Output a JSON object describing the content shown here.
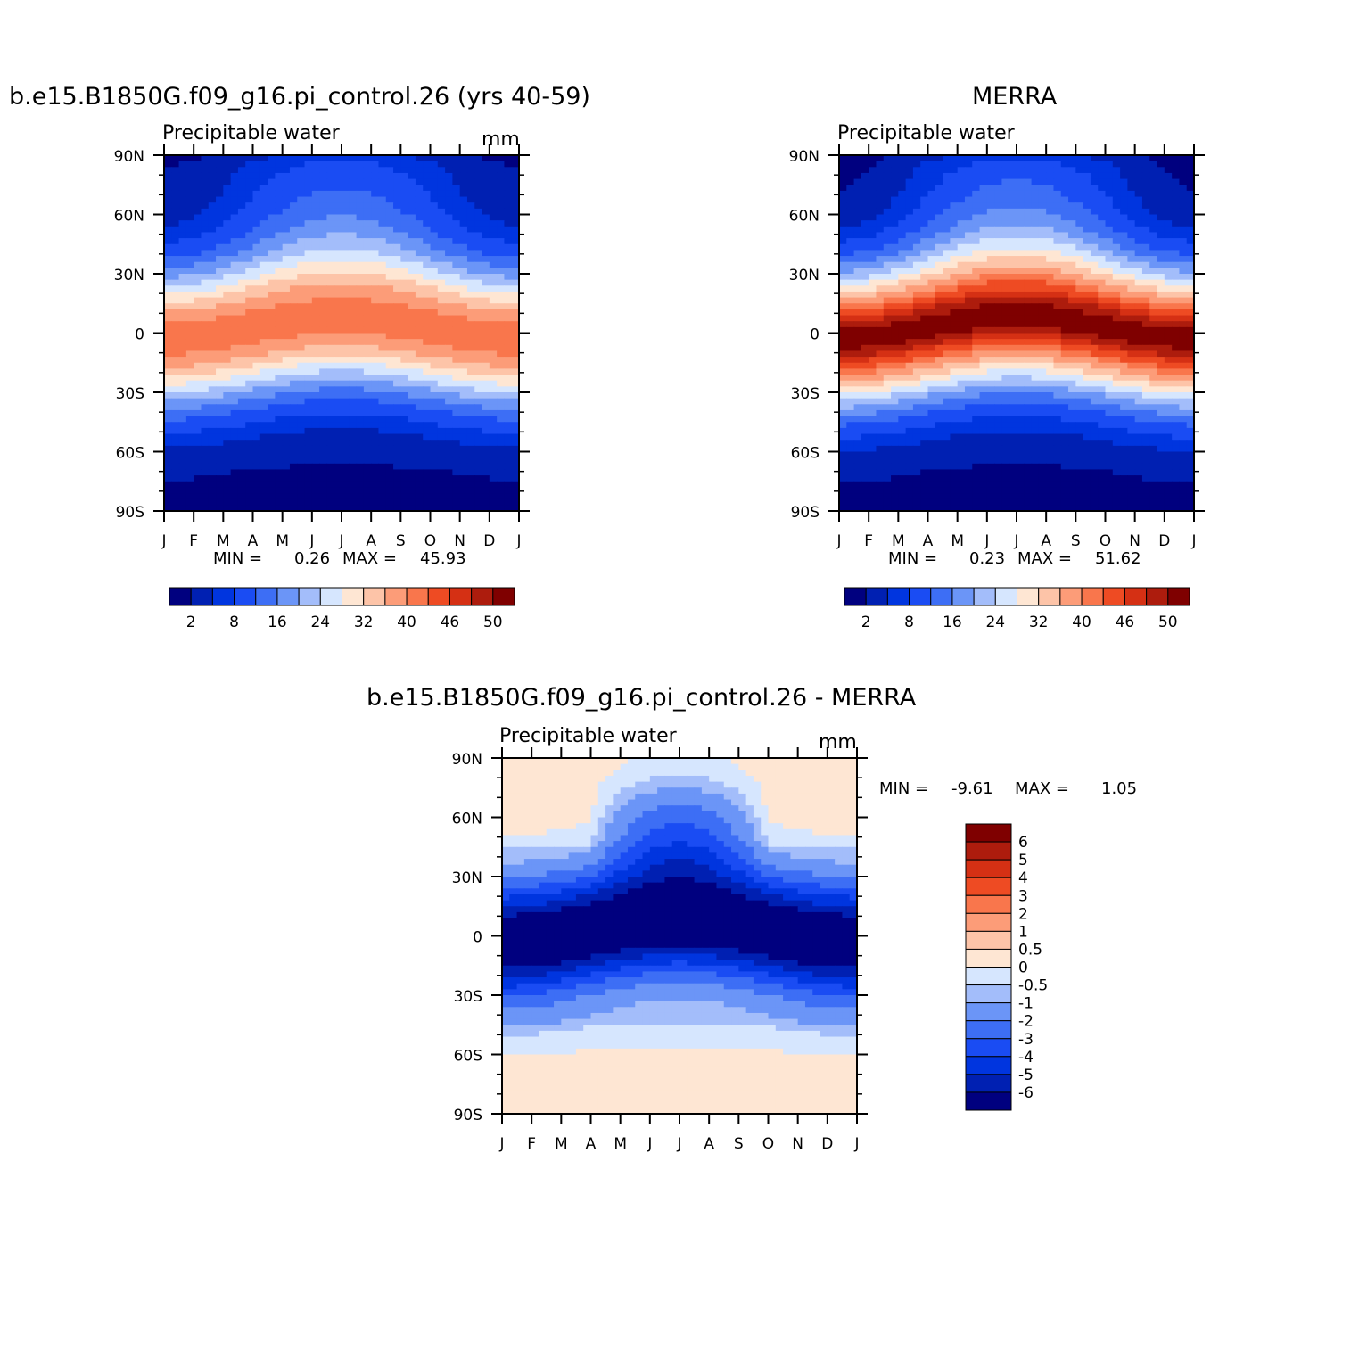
{
  "palette": {
    "abs": [
      "#00007f",
      "#0020b2",
      "#0035df",
      "#1a4cf3",
      "#3d6ef5",
      "#6b95f7",
      "#a3bdfa",
      "#d6e6fe",
      "#fee6d3",
      "#fdc4a8",
      "#fc9c78",
      "#f9764c",
      "#ee4b23",
      "#d53014",
      "#ad1c0d",
      "#7f0000"
    ],
    "diff": [
      "#00007f",
      "#0020b2",
      "#0035df",
      "#1a4cf3",
      "#3d6ef5",
      "#6b95f7",
      "#a3bdfa",
      "#d6e6fe",
      "#fee6d3",
      "#fdc4a8",
      "#fc9c78",
      "#f9764c",
      "#ee4b23",
      "#d53014",
      "#ad1c0d",
      "#7f0000"
    ]
  },
  "panels": [
    {
      "id": "model",
      "title": "b.e15.B1850G.f09_g16.pi_control.26 (yrs 40-59)",
      "left_label": "Precipitable water",
      "units": "mm",
      "stats": {
        "min_label": "MIN =",
        "min": "0.26",
        "max_label": "MAX =",
        "max": "45.93"
      },
      "colorbar_labels": [
        "2",
        "8",
        "16",
        "24",
        "32",
        "40",
        "46",
        "50"
      ]
    },
    {
      "id": "merra",
      "title": "MERRA",
      "left_label": "Precipitable water",
      "units": "",
      "stats": {
        "min_label": "MIN =",
        "min": "0.23",
        "max_label": "MAX =",
        "max": "51.62"
      },
      "colorbar_labels": [
        "2",
        "8",
        "16",
        "24",
        "32",
        "40",
        "46",
        "50"
      ]
    },
    {
      "id": "diff",
      "title": "b.e15.B1850G.f09_g16.pi_control.26 - MERRA",
      "left_label": "Precipitable water",
      "units": "mm",
      "stats": {
        "min_label": "MIN =",
        "min": "-9.61",
        "max_label": "MAX =",
        "max": "1.05"
      },
      "colorbar_labels": [
        "6",
        "5",
        "4",
        "3",
        "2",
        "1",
        "0.5",
        "0",
        "-0.5",
        "-1",
        "-2",
        "-3",
        "-4",
        "-5",
        "-6"
      ]
    }
  ],
  "chart_data": [
    {
      "type": "heatmap",
      "title": "b.e15.B1850G.f09_g16.pi_control.26 (yrs 40-59)",
      "subtitle": "Precipitable water",
      "units": "mm",
      "x": [
        "J",
        "F",
        "M",
        "A",
        "M",
        "J",
        "J",
        "A",
        "S",
        "O",
        "N",
        "D",
        "J"
      ],
      "y_ticks": [
        "90N",
        "60N",
        "30N",
        "0",
        "30S",
        "60S",
        "90S"
      ],
      "levels": [
        2,
        5,
        8,
        12,
        16,
        20,
        24,
        28,
        32,
        36,
        40,
        43,
        46,
        48,
        50
      ],
      "min": 0.26,
      "max": 45.93,
      "pattern": {
        "peak_value": 42,
        "peak_lat_jan": -3,
        "peak_lat_jul": 8,
        "peak_month": "A",
        "north_pole_jan": 3,
        "north_pole_jul": 14,
        "south_pole": 1.5
      }
    },
    {
      "type": "heatmap",
      "title": "MERRA",
      "subtitle": "Precipitable water",
      "x": [
        "J",
        "F",
        "M",
        "A",
        "M",
        "J",
        "J",
        "A",
        "S",
        "O",
        "N",
        "D",
        "J"
      ],
      "y_ticks": [
        "90N",
        "60N",
        "30N",
        "0",
        "30S",
        "60S",
        "90S"
      ],
      "levels": [
        2,
        5,
        8,
        12,
        16,
        20,
        24,
        28,
        32,
        36,
        40,
        43,
        46,
        48,
        50
      ],
      "min": 0.23,
      "max": 51.62,
      "pattern": {
        "peak_value": 51,
        "peak_lat_jan": -3,
        "peak_lat_jul": 9,
        "peak_month": "A",
        "north_pole_jan": 2,
        "north_pole_jul": 15,
        "south_pole": 1.5
      }
    },
    {
      "type": "heatmap",
      "title": "b.e15.B1850G.f09_g16.pi_control.26 - MERRA",
      "subtitle": "Precipitable water",
      "units": "mm",
      "x": [
        "J",
        "F",
        "M",
        "A",
        "M",
        "J",
        "J",
        "A",
        "S",
        "O",
        "N",
        "D",
        "J"
      ],
      "y_ticks": [
        "90N",
        "60N",
        "30N",
        "0",
        "30S",
        "60S",
        "90S"
      ],
      "levels": [
        -6,
        -5,
        -4,
        -3,
        -2,
        -1,
        -0.5,
        0,
        0.5,
        1,
        2,
        3,
        4,
        5,
        6
      ],
      "min": -9.61,
      "max": 1.05,
      "pattern": {
        "tropics_value": -7.5,
        "nh_summer_midlat": -3,
        "high_lat_value": 0.2
      }
    }
  ],
  "axes": {
    "x_labels": [
      "J",
      "F",
      "M",
      "A",
      "M",
      "J",
      "J",
      "A",
      "S",
      "O",
      "N",
      "D",
      "J"
    ],
    "y_labels": [
      "90N",
      "60N",
      "30N",
      "0",
      "30S",
      "60S",
      "90S"
    ]
  }
}
